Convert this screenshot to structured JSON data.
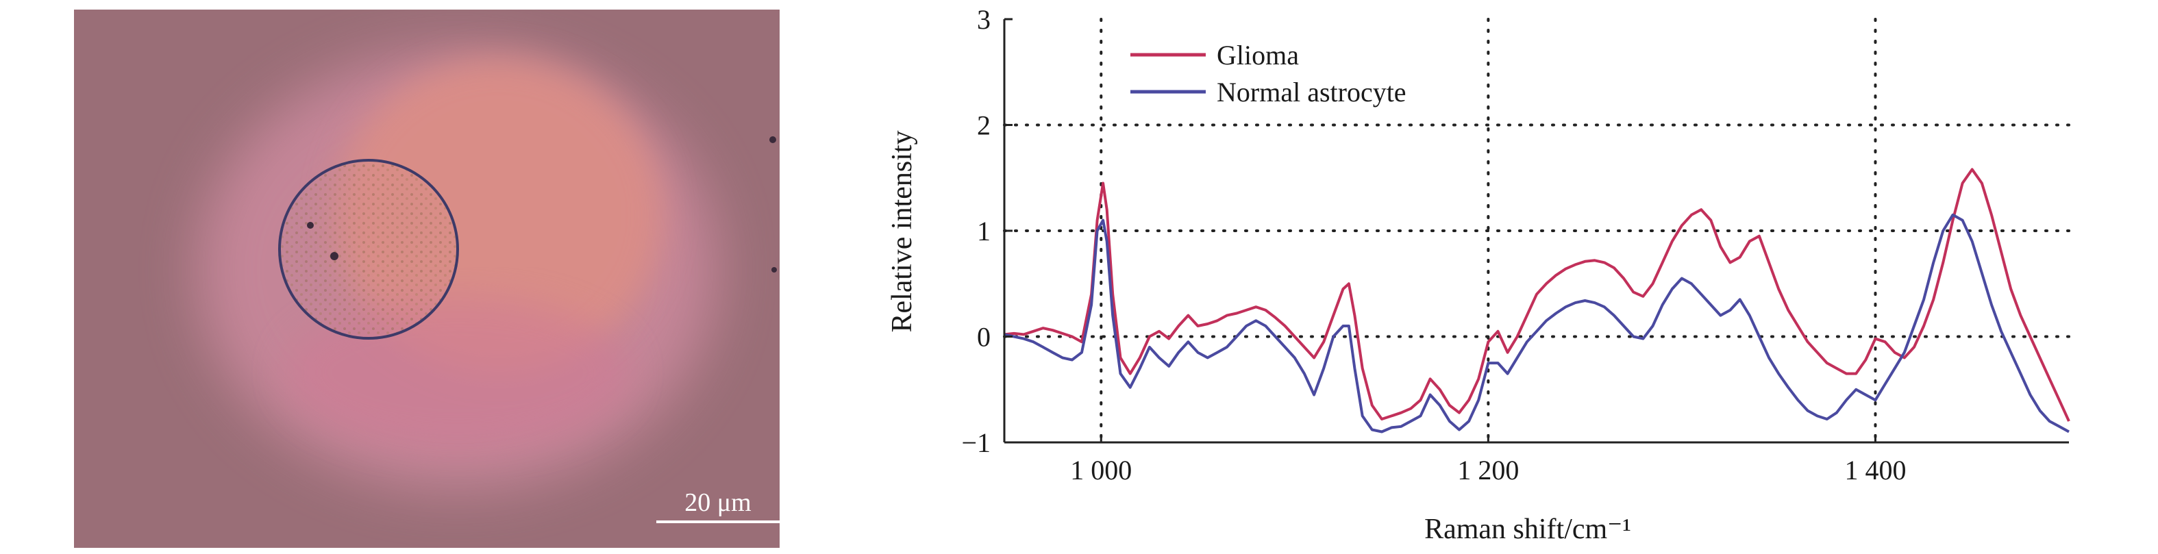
{
  "micrograph": {
    "scale_bar_label": "20 μm",
    "colors": {
      "background": "#9a6e77",
      "halo": "#c9889b",
      "core": "#dc8e86",
      "circle": "#3d3a68"
    }
  },
  "chart_data": {
    "type": "line",
    "xlabel": "Raman shift/cm⁻¹",
    "ylabel": "Relative intensity",
    "xlim": [
      950,
      1500
    ],
    "ylim": [
      -1,
      3
    ],
    "xticks": [
      1000,
      1200,
      1400
    ],
    "xtick_labels": [
      "1 000",
      "1 200",
      "1 400"
    ],
    "yticks": [
      -1,
      0,
      1,
      2,
      3
    ],
    "ytick_labels": [
      "−1",
      "0",
      "1",
      "2",
      "3"
    ],
    "grid": "dotted at x 1000, 1200, 1400 and y 0, 1, 2",
    "legend_position": "top-left",
    "series": [
      {
        "name": "Glioma",
        "color": "#c2305a",
        "x": [
          950,
          955,
          960,
          965,
          970,
          975,
          980,
          985,
          990,
          995,
          998,
          1001,
          1003,
          1006,
          1010,
          1015,
          1020,
          1025,
          1030,
          1035,
          1040,
          1045,
          1050,
          1055,
          1060,
          1065,
          1070,
          1075,
          1080,
          1085,
          1090,
          1095,
          1100,
          1105,
          1110,
          1115,
          1120,
          1125,
          1128,
          1131,
          1135,
          1140,
          1145,
          1150,
          1155,
          1160,
          1165,
          1170,
          1175,
          1180,
          1185,
          1190,
          1195,
          1200,
          1205,
          1210,
          1215,
          1220,
          1225,
          1230,
          1235,
          1240,
          1245,
          1250,
          1255,
          1260,
          1265,
          1270,
          1275,
          1280,
          1285,
          1290,
          1295,
          1300,
          1305,
          1310,
          1315,
          1320,
          1325,
          1330,
          1335,
          1340,
          1345,
          1350,
          1355,
          1360,
          1365,
          1370,
          1375,
          1380,
          1385,
          1390,
          1395,
          1400,
          1405,
          1410,
          1415,
          1420,
          1425,
          1430,
          1435,
          1440,
          1445,
          1450,
          1455,
          1460,
          1465,
          1470,
          1475,
          1480,
          1485,
          1490,
          1495,
          1500
        ],
        "values": [
          0.02,
          0.03,
          0.02,
          0.05,
          0.08,
          0.06,
          0.03,
          0.0,
          -0.05,
          0.4,
          1.1,
          1.45,
          1.2,
          0.4,
          -0.2,
          -0.35,
          -0.2,
          0.0,
          0.05,
          -0.02,
          0.1,
          0.2,
          0.1,
          0.12,
          0.15,
          0.2,
          0.22,
          0.25,
          0.28,
          0.25,
          0.18,
          0.1,
          0.0,
          -0.1,
          -0.2,
          -0.05,
          0.2,
          0.45,
          0.5,
          0.2,
          -0.3,
          -0.65,
          -0.78,
          -0.75,
          -0.72,
          -0.68,
          -0.6,
          -0.4,
          -0.5,
          -0.65,
          -0.72,
          -0.6,
          -0.4,
          -0.05,
          0.05,
          -0.15,
          0.0,
          0.2,
          0.4,
          0.5,
          0.58,
          0.64,
          0.68,
          0.71,
          0.72,
          0.7,
          0.65,
          0.55,
          0.42,
          0.38,
          0.5,
          0.7,
          0.9,
          1.05,
          1.15,
          1.2,
          1.1,
          0.85,
          0.7,
          0.75,
          0.9,
          0.95,
          0.7,
          0.45,
          0.25,
          0.1,
          -0.05,
          -0.15,
          -0.25,
          -0.3,
          -0.35,
          -0.35,
          -0.22,
          -0.02,
          -0.05,
          -0.15,
          -0.2,
          -0.1,
          0.1,
          0.35,
          0.7,
          1.1,
          1.45,
          1.58,
          1.45,
          1.15,
          0.8,
          0.45,
          0.2,
          0.0,
          -0.2,
          -0.4,
          -0.6,
          -0.8
        ]
      },
      {
        "name": "Normal astrocyte",
        "color": "#4a4aa0",
        "x": [
          950,
          955,
          960,
          965,
          970,
          975,
          980,
          985,
          990,
          995,
          998,
          1001,
          1003,
          1006,
          1010,
          1015,
          1020,
          1025,
          1030,
          1035,
          1040,
          1045,
          1050,
          1055,
          1060,
          1065,
          1070,
          1075,
          1080,
          1085,
          1090,
          1095,
          1100,
          1105,
          1110,
          1115,
          1120,
          1125,
          1128,
          1131,
          1135,
          1140,
          1145,
          1150,
          1155,
          1160,
          1165,
          1170,
          1175,
          1180,
          1185,
          1190,
          1195,
          1200,
          1205,
          1210,
          1215,
          1220,
          1225,
          1230,
          1235,
          1240,
          1245,
          1250,
          1255,
          1260,
          1265,
          1270,
          1275,
          1280,
          1285,
          1290,
          1295,
          1300,
          1305,
          1310,
          1315,
          1320,
          1325,
          1330,
          1335,
          1340,
          1345,
          1350,
          1355,
          1360,
          1365,
          1370,
          1375,
          1380,
          1385,
          1390,
          1395,
          1400,
          1405,
          1410,
          1415,
          1420,
          1425,
          1430,
          1435,
          1440,
          1445,
          1450,
          1455,
          1460,
          1465,
          1470,
          1475,
          1480,
          1485,
          1490,
          1495,
          1500
        ],
        "values": [
          0.02,
          0.0,
          -0.02,
          -0.05,
          -0.1,
          -0.15,
          -0.2,
          -0.22,
          -0.15,
          0.3,
          1.0,
          1.1,
          0.9,
          0.2,
          -0.35,
          -0.48,
          -0.3,
          -0.1,
          -0.2,
          -0.28,
          -0.15,
          -0.05,
          -0.15,
          -0.2,
          -0.15,
          -0.1,
          0.0,
          0.1,
          0.15,
          0.1,
          0.0,
          -0.1,
          -0.2,
          -0.35,
          -0.55,
          -0.3,
          0.0,
          0.1,
          0.1,
          -0.3,
          -0.75,
          -0.88,
          -0.9,
          -0.86,
          -0.85,
          -0.8,
          -0.75,
          -0.55,
          -0.65,
          -0.8,
          -0.88,
          -0.8,
          -0.6,
          -0.25,
          -0.25,
          -0.35,
          -0.2,
          -0.05,
          0.05,
          0.15,
          0.22,
          0.28,
          0.32,
          0.34,
          0.32,
          0.28,
          0.2,
          0.1,
          0.0,
          -0.02,
          0.1,
          0.3,
          0.45,
          0.55,
          0.5,
          0.4,
          0.3,
          0.2,
          0.25,
          0.35,
          0.2,
          0.0,
          -0.2,
          -0.35,
          -0.48,
          -0.6,
          -0.7,
          -0.75,
          -0.78,
          -0.72,
          -0.6,
          -0.5,
          -0.55,
          -0.6,
          -0.45,
          -0.3,
          -0.15,
          0.1,
          0.35,
          0.7,
          1.0,
          1.15,
          1.1,
          0.9,
          0.6,
          0.3,
          0.05,
          -0.15,
          -0.35,
          -0.55,
          -0.7,
          -0.8,
          -0.85,
          -0.9
        ]
      }
    ]
  }
}
